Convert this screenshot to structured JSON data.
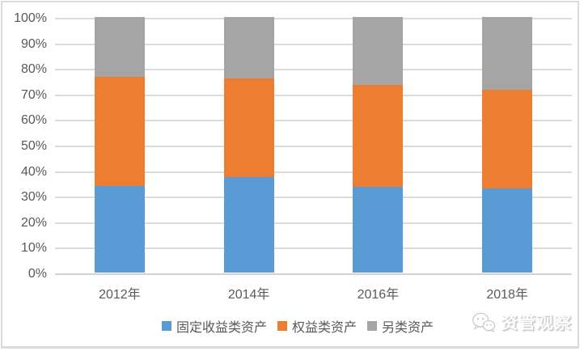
{
  "chart_data": {
    "type": "bar",
    "stacked": true,
    "percent_stacked": true,
    "title": "",
    "xlabel": "",
    "ylabel": "",
    "categories": [
      "2012年",
      "2014年",
      "2016年",
      "2018年"
    ],
    "series": [
      {
        "name": "固定收益类资产",
        "color": "#5B9BD5",
        "values": [
          34,
          37.5,
          33.5,
          33
        ]
      },
      {
        "name": "权益类资产",
        "color": "#ED7D31",
        "values": [
          42.5,
          38.5,
          40,
          38.5
        ]
      },
      {
        "name": "另类资产",
        "color": "#A5A5A5",
        "values": [
          23.5,
          24,
          26.5,
          28.5
        ]
      }
    ],
    "ylim": [
      0,
      100
    ],
    "yticks": [
      "0%",
      "10%",
      "20%",
      "30%",
      "40%",
      "50%",
      "60%",
      "70%",
      "80%",
      "90%",
      "100%"
    ],
    "grid": true,
    "legend_position": "bottom"
  },
  "watermark": {
    "label": "资管观察",
    "icon": "wechat-icon"
  },
  "colors": {
    "background": "#FFFFFF",
    "gridline": "#DBDBDB",
    "axis_baseline": "#D2D2D2",
    "axis_text": "#595959",
    "frame_border": "#DBDBDB",
    "series_blue": "#5B9BD5",
    "series_orange": "#ED7D31",
    "series_gray": "#A5A5A5"
  }
}
